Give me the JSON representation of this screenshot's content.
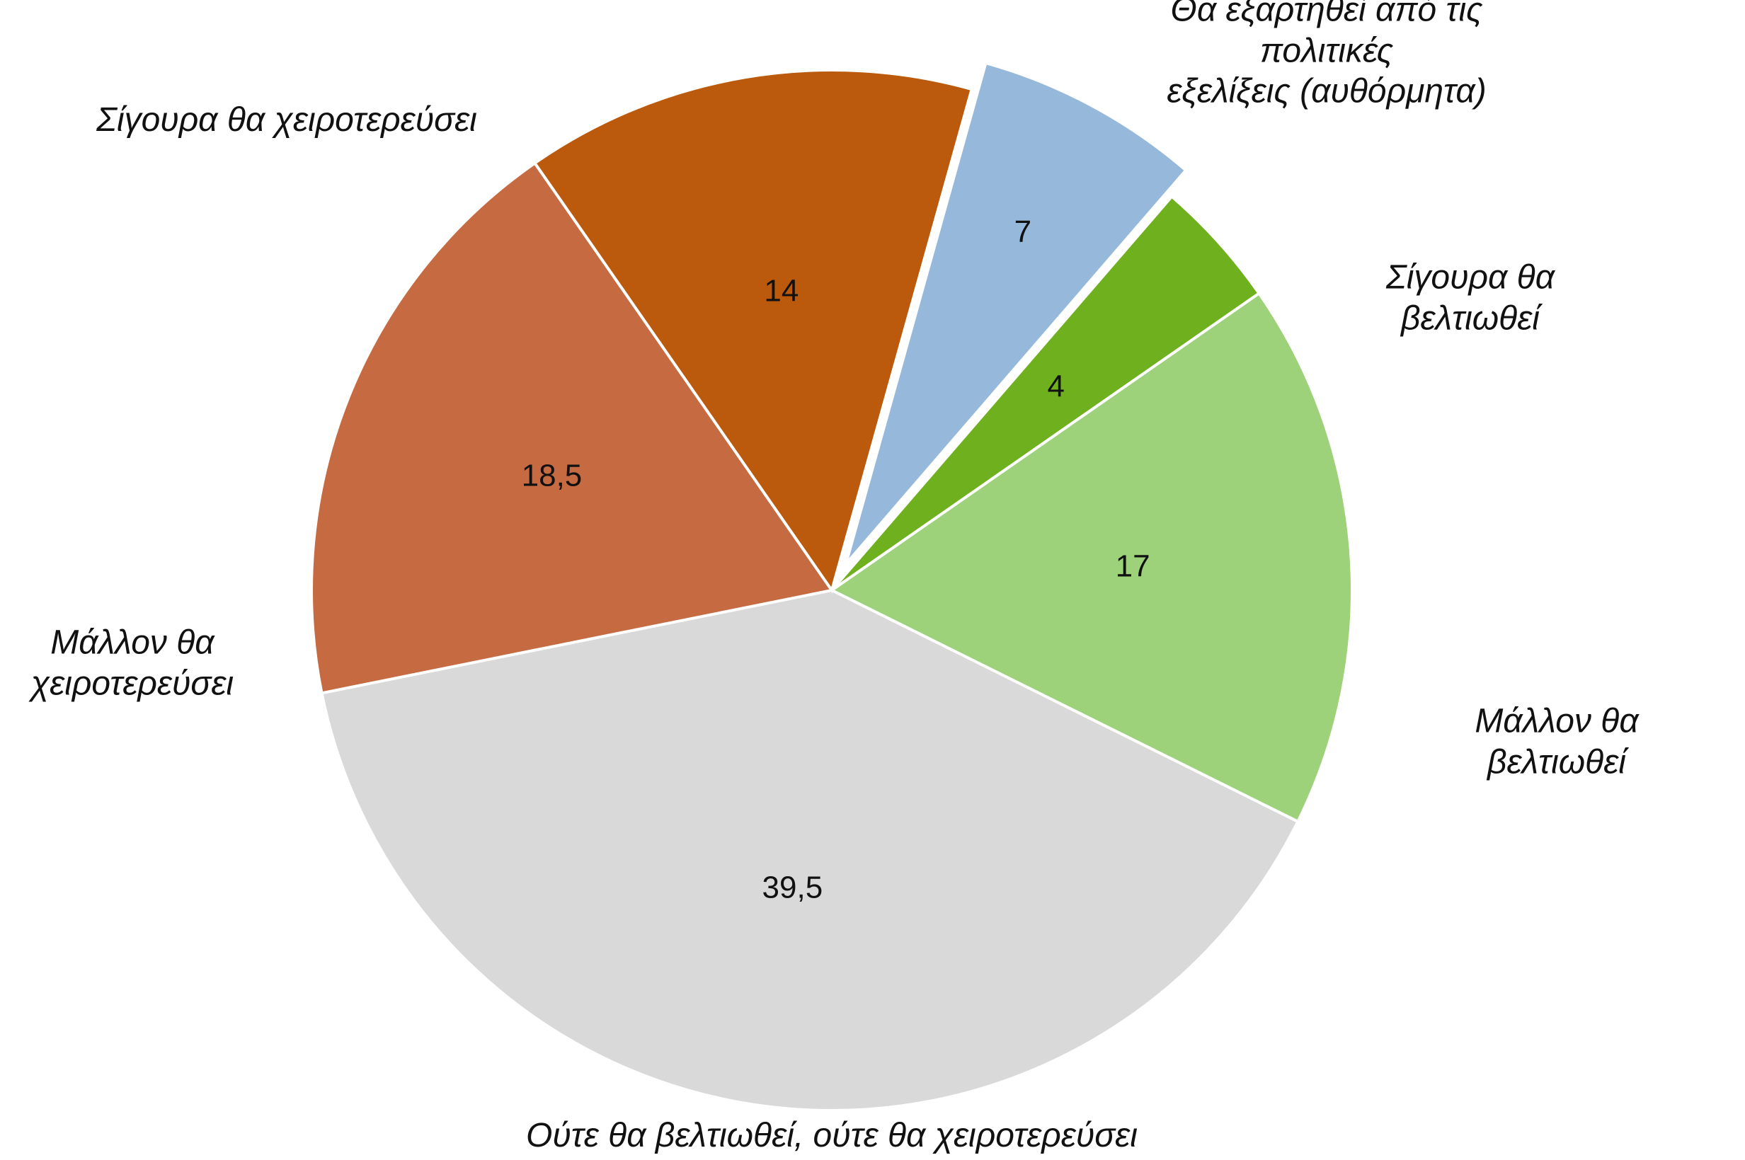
{
  "chart_data": {
    "type": "pie",
    "categories": [
      "Θα εξαρτηθεί από τις πολιτικές\nεξελίξεις (αυθόρμητα)",
      "Σίγουρα θα βελτιωθεί",
      "Μάλλον θα βελτιωθεί",
      "Ούτε θα βελτιωθεί, ούτε θα χειροτερεύσει",
      "Μάλλον θα\nχειροτερεύσει",
      "Σίγουρα θα χειροτερεύσει"
    ],
    "values": [
      7,
      4,
      17,
      39.5,
      18.5,
      14
    ],
    "value_labels": [
      "7",
      "4",
      "17",
      "39,5",
      "18,5",
      "14"
    ],
    "colors": [
      "#95b8db",
      "#6fb01e",
      "#9dd27a",
      "#d9d9d9",
      "#c66a42",
      "#bb5a0c"
    ],
    "explode": [
      true,
      false,
      false,
      false,
      false,
      false
    ]
  }
}
